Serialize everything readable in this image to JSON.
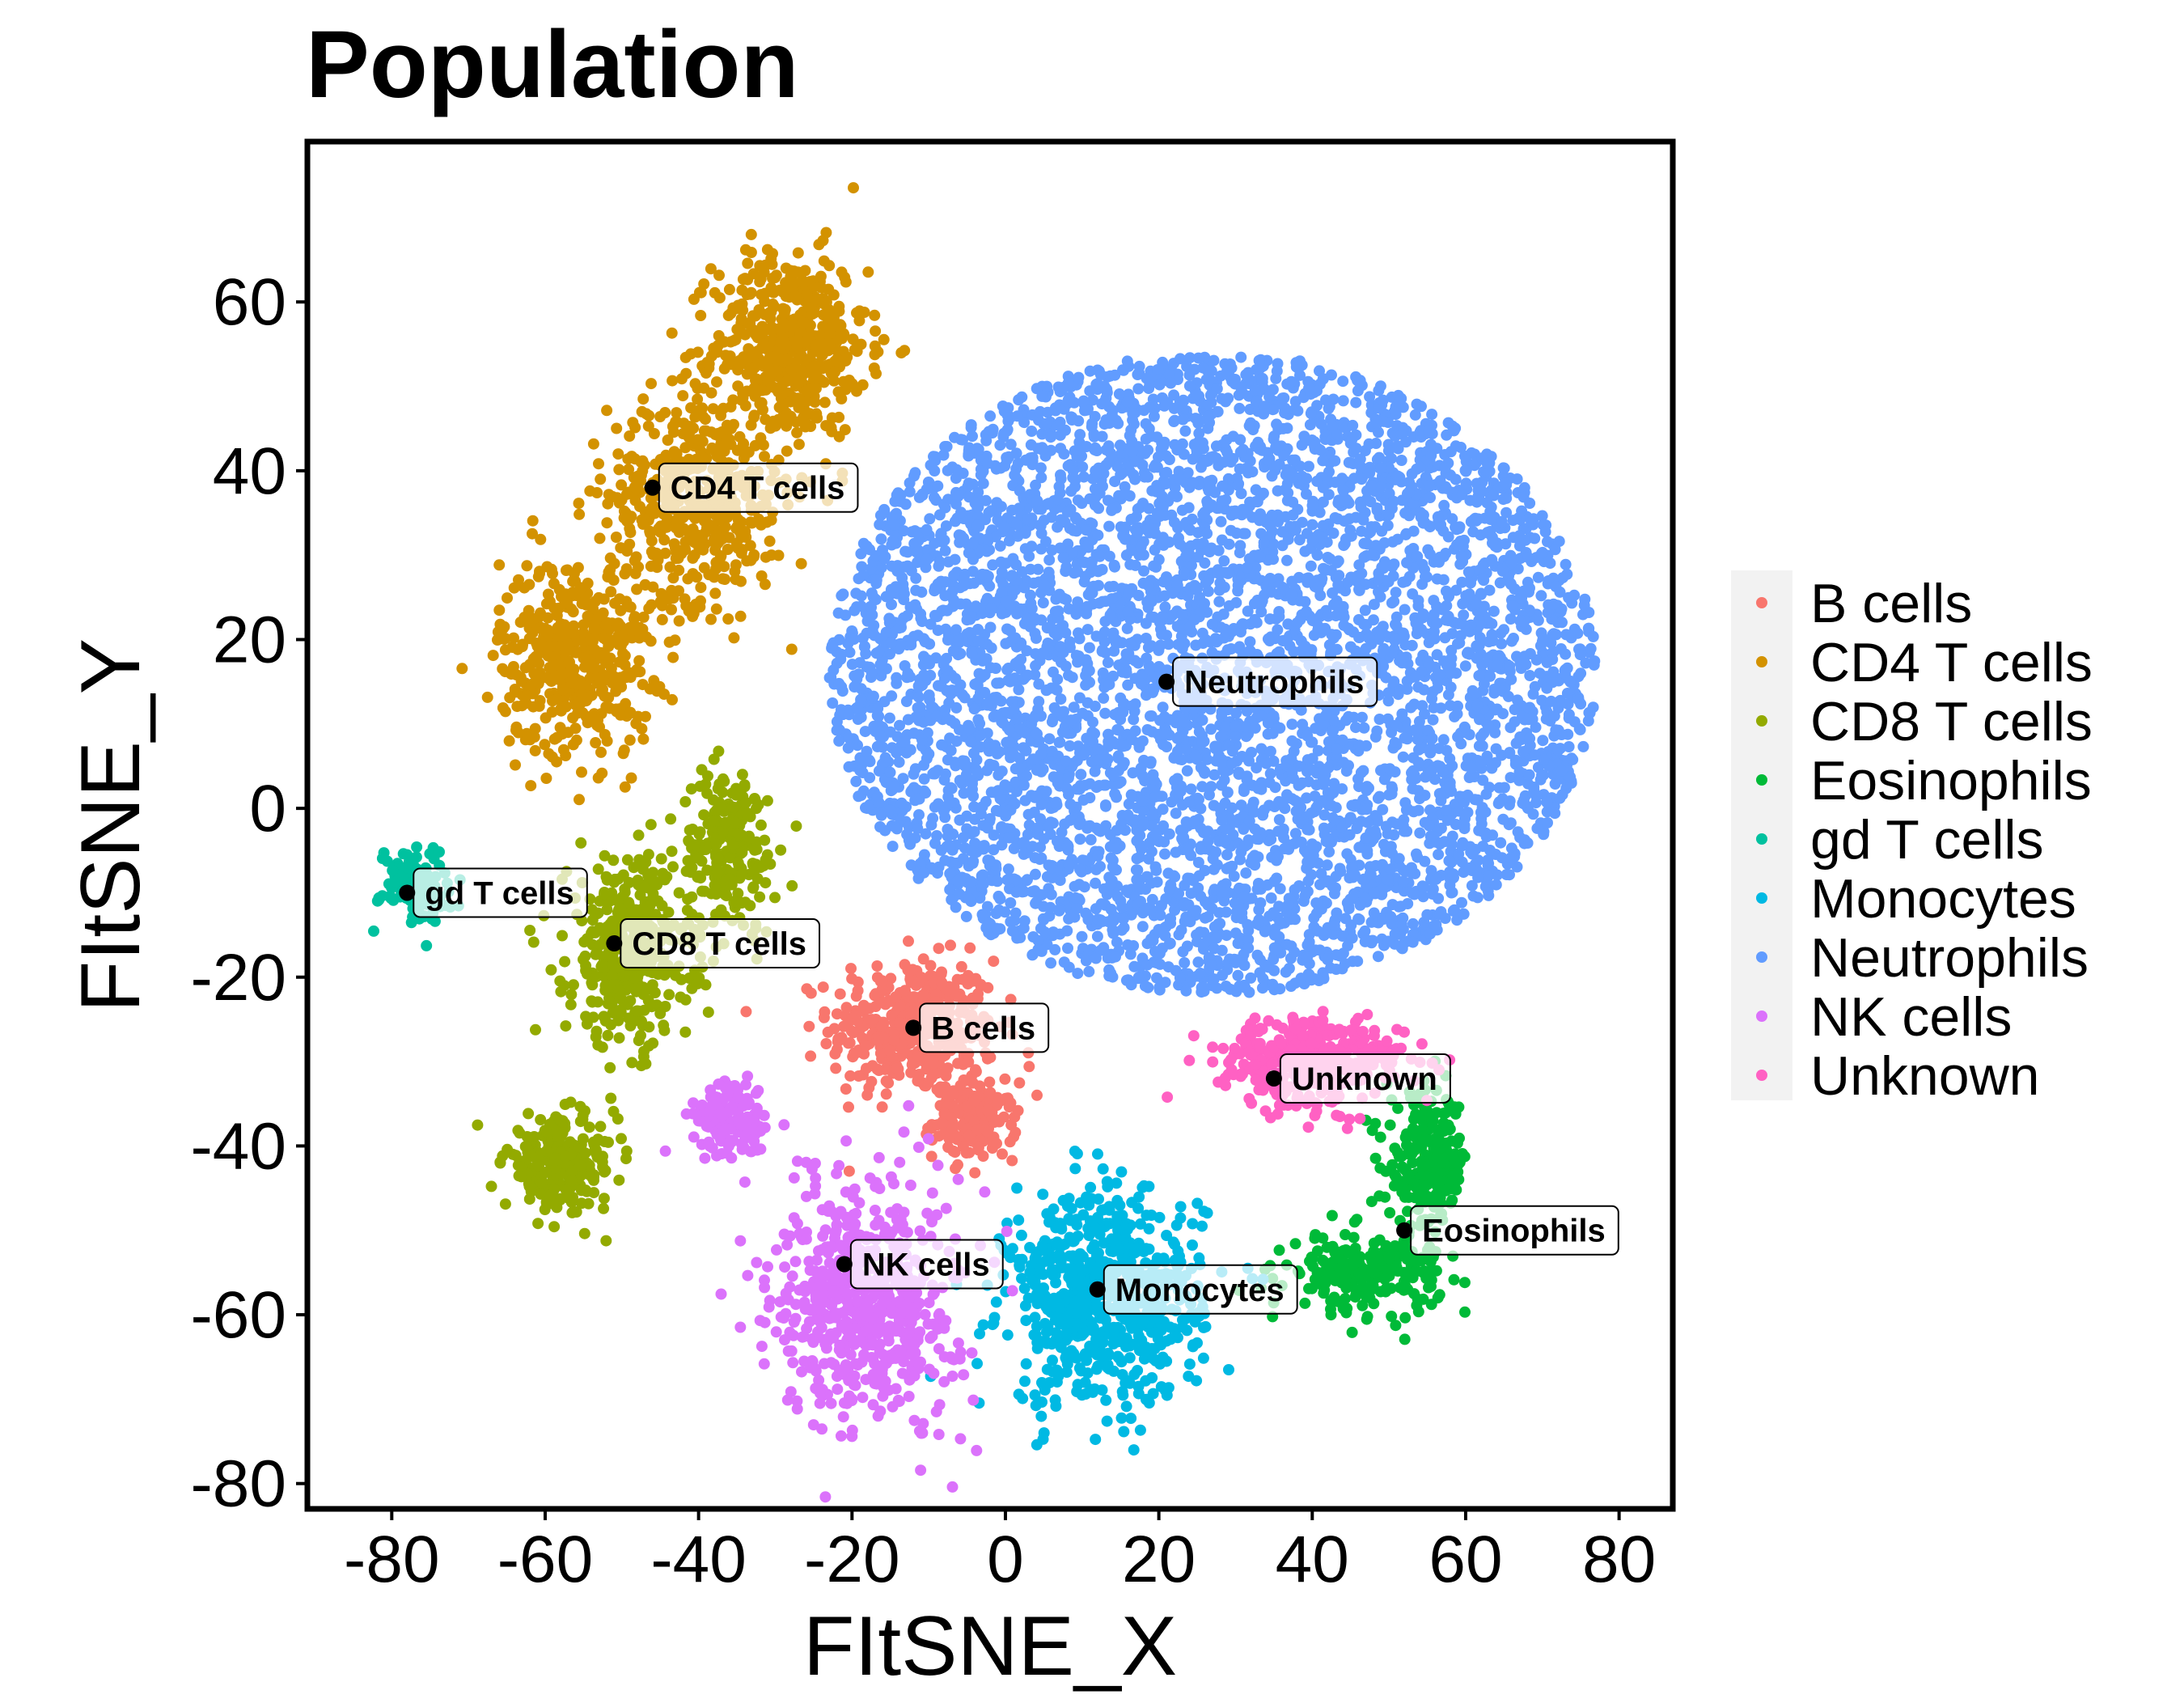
{
  "chart_data": {
    "type": "scatter",
    "title": "Population",
    "xlabel": "FItSNE_X",
    "ylabel": "FItSNE_Y",
    "xlim": [
      -91,
      87
    ],
    "ylim": [
      -83,
      79
    ],
    "xticks": [
      -80,
      -60,
      -40,
      -20,
      0,
      20,
      40,
      60,
      80
    ],
    "yticks": [
      60,
      40,
      20,
      0,
      -20,
      -40,
      -60,
      -80
    ],
    "grid": false,
    "legend_position": "right",
    "series": [
      {
        "name": "B cells",
        "color": "#F8766D",
        "clusters": [
          {
            "cx": -12,
            "cy": -26,
            "rx": 12,
            "ry": 9,
            "n": 420
          },
          {
            "cx": -4,
            "cy": -37,
            "rx": 6,
            "ry": 5,
            "n": 160
          }
        ],
        "centroid": {
          "x": -12,
          "y": -26
        }
      },
      {
        "name": "CD4 T cells",
        "color": "#D39200",
        "clusters": [
          {
            "cx": -28,
            "cy": 55,
            "rx": 11,
            "ry": 12,
            "n": 500
          },
          {
            "cx": -40,
            "cy": 37,
            "rx": 13,
            "ry": 14,
            "n": 520
          },
          {
            "cx": -56,
            "cy": 18,
            "rx": 11,
            "ry": 13,
            "n": 460
          }
        ],
        "centroid": {
          "x": -46,
          "y": 38
        }
      },
      {
        "name": "CD8 T cells",
        "color": "#93AA00",
        "clusters": [
          {
            "cx": -36,
            "cy": -5,
            "rx": 7,
            "ry": 11,
            "n": 220
          },
          {
            "cx": -49,
            "cy": -17,
            "rx": 9,
            "ry": 12,
            "n": 420
          },
          {
            "cx": -58,
            "cy": -42,
            "rx": 8,
            "ry": 6,
            "n": 240
          }
        ],
        "centroid": {
          "x": -51,
          "y": -16
        }
      },
      {
        "name": "Eosinophils",
        "color": "#00BA38",
        "clusters": [
          {
            "cx": 55,
            "cy": -42,
            "rx": 6,
            "ry": 9,
            "n": 230
          },
          {
            "cx": 47,
            "cy": -55,
            "rx": 11,
            "ry": 5,
            "n": 230
          }
        ],
        "centroid": {
          "x": 52,
          "y": -50
        }
      },
      {
        "name": "gd T cells",
        "color": "#00C19F",
        "clusters": [
          {
            "cx": -77,
            "cy": -9,
            "rx": 5,
            "ry": 5,
            "n": 120
          }
        ],
        "centroid": {
          "x": -78,
          "y": -10
        }
      },
      {
        "name": "Monocytes",
        "color": "#00B9E3",
        "clusters": [
          {
            "cx": 13,
            "cy": -58,
            "rx": 14,
            "ry": 14,
            "n": 700
          }
        ],
        "centroid": {
          "x": 12,
          "y": -57
        }
      },
      {
        "name": "Neutrophils",
        "color": "#619CFF",
        "clusters": [
          {
            "cx": 27,
            "cy": 16,
            "rx": 50,
            "ry": 38,
            "n": 5200
          }
        ],
        "centroid": {
          "x": 21,
          "y": 15
        }
      },
      {
        "name": "NK cells",
        "color": "#DB72FB",
        "clusters": [
          {
            "cx": -18,
            "cy": -58,
            "rx": 13,
            "ry": 16,
            "n": 620
          },
          {
            "cx": -36,
            "cy": -37,
            "rx": 6,
            "ry": 5,
            "n": 140
          }
        ],
        "centroid": {
          "x": -21,
          "y": -54
        }
      },
      {
        "name": "Unknown",
        "color": "#FF61C3",
        "clusters": [
          {
            "cx": 40,
            "cy": -30,
            "rx": 13,
            "ry": 6,
            "n": 380
          }
        ],
        "centroid": {
          "x": 35,
          "y": -32
        }
      }
    ]
  }
}
